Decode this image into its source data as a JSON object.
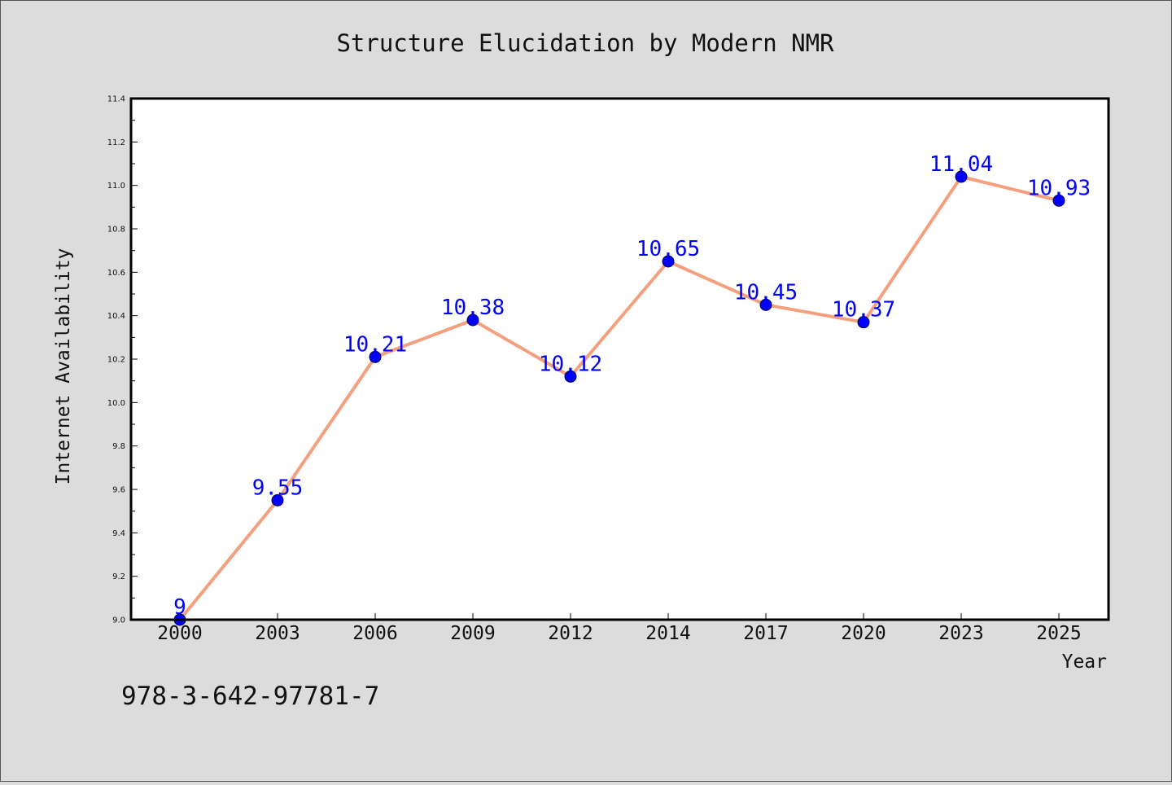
{
  "chart_data": {
    "type": "line",
    "title": "Structure Elucidation by Modern NMR",
    "xlabel": "Year",
    "ylabel": "Internet Availability",
    "categories": [
      "2000",
      "2003",
      "2006",
      "2009",
      "2012",
      "2014",
      "2017",
      "2020",
      "2023",
      "2025"
    ],
    "series": [
      {
        "values": [
          9,
          9.55,
          10.21,
          10.38,
          10.12,
          10.65,
          10.45,
          10.37,
          11.04,
          10.93
        ],
        "data_labels": [
          "9",
          "9.55",
          "10.21",
          "10.38",
          "10.12",
          "10.65",
          "10.45",
          "10.37",
          "11.04",
          "10.93"
        ]
      }
    ],
    "ylim": [
      9.0,
      11.4
    ],
    "yticks": [
      "9.0",
      "9.2",
      "9.4",
      "9.6",
      "9.8",
      "10.0",
      "10.2",
      "10.4",
      "10.6",
      "10.8",
      "11.0",
      "11.2",
      "11.4"
    ],
    "grid": false,
    "colors": {
      "line": "#f4a07f",
      "marker": "#0000ff",
      "label": "#0000ff",
      "background": "#dcdcdc",
      "plot_area": "#ffffff"
    }
  },
  "annotation": "978-3-642-97781-7"
}
